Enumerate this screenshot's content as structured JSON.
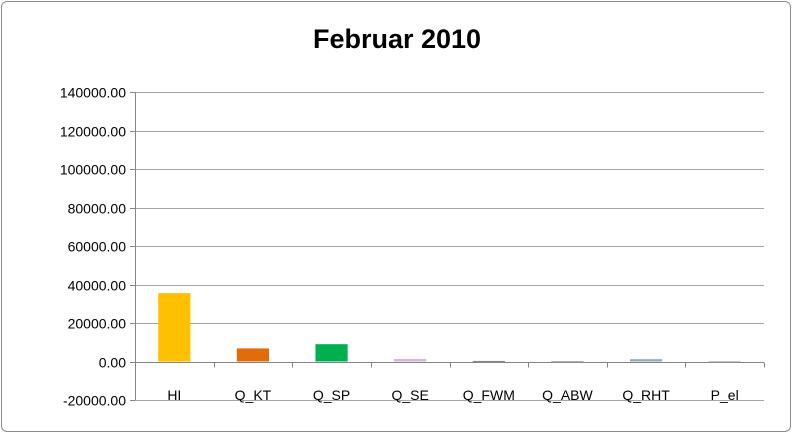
{
  "chart_data": {
    "type": "bar",
    "title": "Februar 2010",
    "xlabel": "",
    "ylabel": "",
    "categories": [
      "HI",
      "Q_KT",
      "Q_SP",
      "Q_SE",
      "Q_FWM",
      "Q_ABW",
      "Q_RHT",
      "P_el"
    ],
    "values": [
      35500,
      6800,
      9000,
      1300,
      300,
      200,
      1200,
      200
    ],
    "colors": [
      "#FFC000",
      "#E36C0A",
      "#00B050",
      "#D9B3D9",
      "#7F7F7F",
      "#A6A6A6",
      "#8EA9C1",
      "#BFBFBF"
    ],
    "ylim": [
      -20000,
      140000
    ],
    "yticks": [
      140000,
      120000,
      100000,
      80000,
      60000,
      40000,
      20000,
      0,
      -20000
    ],
    "ytick_labels": [
      "140000.00",
      "120000.00",
      "100000.00",
      "80000.00",
      "60000.00",
      "40000.00",
      "20000.00",
      "0.00",
      "-20000.00"
    ],
    "grid": true,
    "gridline_color": "#A6A6A6",
    "legend": "none"
  }
}
